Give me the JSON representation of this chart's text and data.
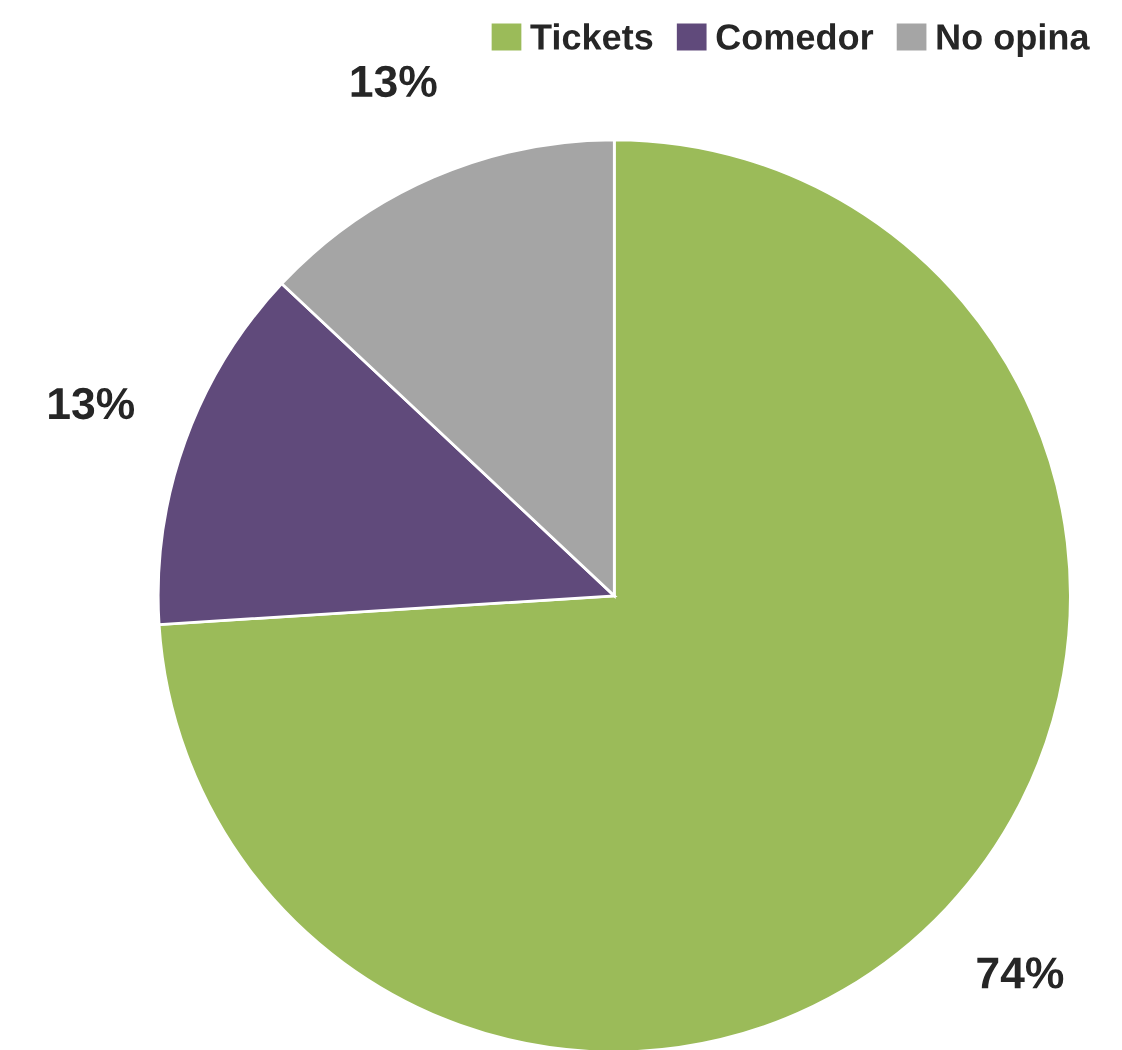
{
  "chart_data": {
    "type": "pie",
    "categories": [
      "Tickets",
      "Comedor",
      "No opina"
    ],
    "values": [
      74,
      13,
      13
    ],
    "colors": [
      "#9bbb59",
      "#604a7b",
      "#a5a5a5"
    ],
    "value_labels": [
      "74%",
      "13%",
      "13%"
    ],
    "legend": "top right"
  }
}
